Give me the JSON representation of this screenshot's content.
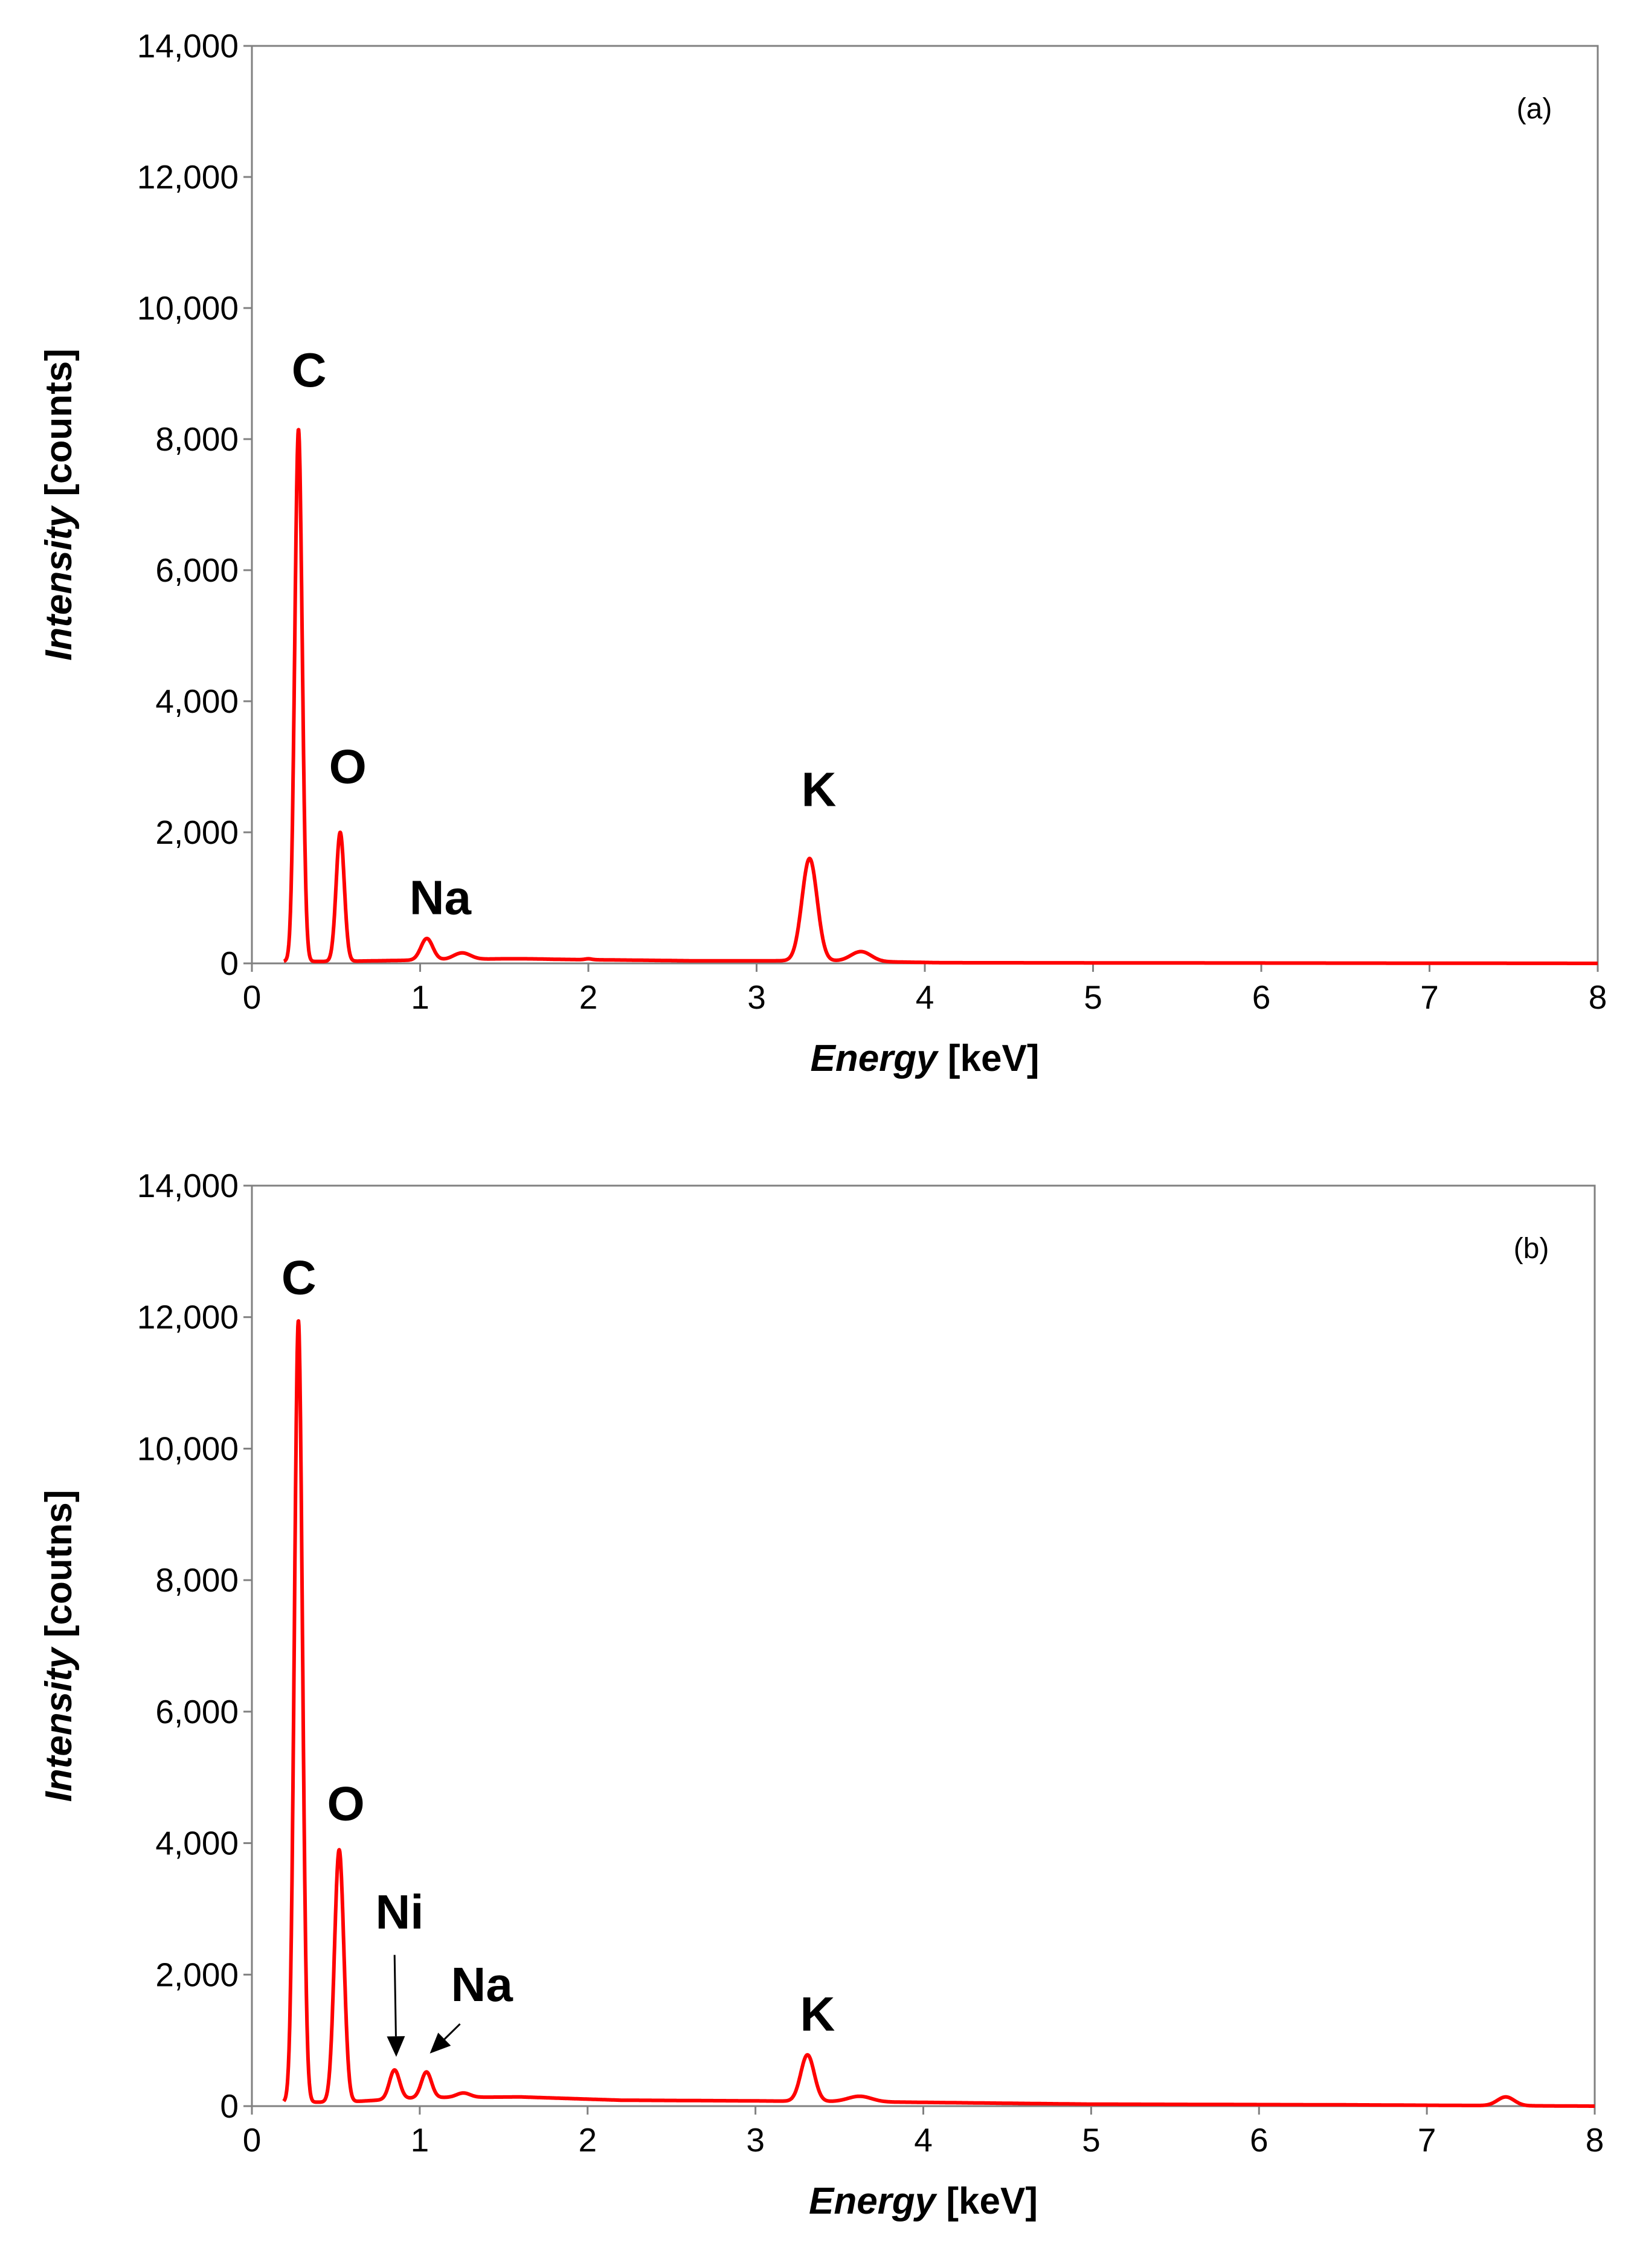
{
  "chart_data": [
    {
      "type": "line",
      "panel_label": "(a)",
      "xlabel_italic": "Energy",
      "xlabel_unit": " [keV]",
      "ylabel_italic": "Intensity",
      "ylabel_unit": " [counts]",
      "xlim": [
        0,
        8
      ],
      "ylim": [
        0,
        14000
      ],
      "x_ticks": [
        0,
        1,
        2,
        3,
        4,
        5,
        6,
        7,
        8
      ],
      "x_tick_labels": [
        "0",
        "1",
        "2",
        "3",
        "4",
        "5",
        "6",
        "7",
        "8"
      ],
      "y_ticks": [
        0,
        2000,
        4000,
        6000,
        8000,
        10000,
        12000,
        14000
      ],
      "y_tick_labels": [
        "0",
        "2,000",
        "4,000",
        "6,000",
        "8,000",
        "10,000",
        "12,000",
        "14,000"
      ],
      "grid": false,
      "line_color": "#ff0000",
      "baseline": 0,
      "x_range": [
        0.19,
        8.0
      ],
      "peaks": [
        {
          "element": "C",
          "x": 0.277,
          "y": 8150,
          "width": 0.022
        },
        {
          "element": "O",
          "x": 0.525,
          "y": 2000,
          "width": 0.024
        },
        {
          "element": "Na",
          "x": 1.04,
          "y": 380,
          "width": 0.035
        },
        {
          "element": "",
          "x": 1.25,
          "y": 160,
          "width": 0.05
        },
        {
          "element": "",
          "x": 1.59,
          "y": 70,
          "width": 0.1
        },
        {
          "element": "",
          "x": 2.0,
          "y": 70,
          "width": 0.02
        },
        {
          "element": "K",
          "x": 3.315,
          "y": 1600,
          "width": 0.045
        },
        {
          "element": "",
          "x": 3.62,
          "y": 180,
          "width": 0.06
        }
      ],
      "continuum": [
        [
          0.5,
          30
        ],
        [
          1.5,
          70
        ],
        [
          2.6,
          40
        ],
        [
          3.4,
          40
        ],
        [
          4.1,
          10
        ],
        [
          8.0,
          0
        ]
      ],
      "annotations": [
        {
          "text": "C",
          "x": 0.34,
          "y": 8800
        },
        {
          "text": "O",
          "x": 0.57,
          "y": 2750
        },
        {
          "text": "Na",
          "x": 1.12,
          "y": 750
        },
        {
          "text": "K",
          "x": 3.37,
          "y": 2400
        }
      ],
      "arrows": []
    },
    {
      "type": "line",
      "panel_label": "(b)",
      "xlabel_italic": "Energy",
      "xlabel_unit": " [keV]",
      "ylabel_italic": "Intensity",
      "ylabel_unit": " [coutns]",
      "xlim": [
        0,
        8
      ],
      "ylim": [
        0,
        14000
      ],
      "x_ticks": [
        0,
        1,
        2,
        3,
        4,
        5,
        6,
        7,
        8
      ],
      "x_tick_labels": [
        "0",
        "1",
        "2",
        "3",
        "4",
        "5",
        "6",
        "7",
        "8"
      ],
      "y_ticks": [
        0,
        2000,
        4000,
        6000,
        8000,
        10000,
        12000,
        14000
      ],
      "y_tick_labels": [
        "0",
        "2,000",
        "4,000",
        "6,000",
        "8,000",
        "10,000",
        "12,000",
        "14,000"
      ],
      "grid": false,
      "line_color": "#ff0000",
      "baseline": 0,
      "x_range": [
        0.19,
        8.0
      ],
      "peaks": [
        {
          "element": "C",
          "x": 0.277,
          "y": 11950,
          "width": 0.024
        },
        {
          "element": "O",
          "x": 0.52,
          "y": 3900,
          "width": 0.028
        },
        {
          "element": "Ni",
          "x": 0.85,
          "y": 550,
          "width": 0.03
        },
        {
          "element": "Na",
          "x": 1.04,
          "y": 520,
          "width": 0.03
        },
        {
          "element": "",
          "x": 1.26,
          "y": 200,
          "width": 0.04
        },
        {
          "element": "K",
          "x": 3.31,
          "y": 780,
          "width": 0.04
        },
        {
          "element": "",
          "x": 3.62,
          "y": 150,
          "width": 0.07
        },
        {
          "element": "",
          "x": 7.47,
          "y": 140,
          "width": 0.05
        }
      ],
      "continuum": [
        [
          0.55,
          60
        ],
        [
          1.0,
          130
        ],
        [
          1.6,
          140
        ],
        [
          2.2,
          90
        ],
        [
          3.0,
          80
        ],
        [
          3.9,
          60
        ],
        [
          5.0,
          30
        ],
        [
          6.5,
          20
        ],
        [
          8.0,
          0
        ]
      ],
      "annotations": [
        {
          "text": "C",
          "x": 0.28,
          "y": 12350
        },
        {
          "text": "O",
          "x": 0.56,
          "y": 4350
        },
        {
          "text": "Ni",
          "x": 0.88,
          "y": 2700
        },
        {
          "text": "Na",
          "x": 1.37,
          "y": 1600
        },
        {
          "text": "K",
          "x": 3.37,
          "y": 1150
        }
      ],
      "arrows": [
        {
          "from": [
            0.85,
            2300
          ],
          "to": [
            0.86,
            750
          ]
        },
        {
          "from": [
            1.24,
            1250
          ],
          "to": [
            1.06,
            800
          ]
        }
      ]
    }
  ]
}
